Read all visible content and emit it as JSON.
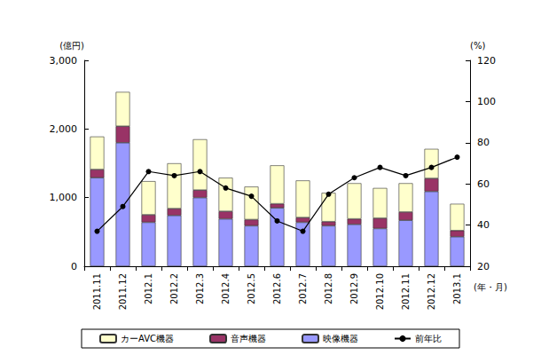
{
  "chart_data": {
    "type": "bar",
    "stacked": true,
    "grid": false,
    "legend": "bottom",
    "y_label": "(億円)",
    "y2_label": "(%)",
    "x_label": "(年・月)",
    "categories": [
      "2011.11",
      "2011.12",
      "2012.1",
      "2012.2",
      "2012.3",
      "2012.4",
      "2012.5",
      "2012.6",
      "2012.7",
      "2012.8",
      "2012.9",
      "2012.10",
      "2012.11",
      "2012.12",
      "2013.1"
    ],
    "ylim": [
      0,
      3000
    ],
    "yticks": [
      0,
      {
        "value": 1000,
        "label": "1,000"
      },
      {
        "value": 2000,
        "label": "2,000"
      },
      {
        "value": 3000,
        "label": "3,000"
      }
    ],
    "y2lim": [
      20,
      120
    ],
    "y2ticks": [
      20,
      40,
      60,
      80,
      100,
      120
    ],
    "series": [
      {
        "name": "映像機器",
        "type": "bar",
        "color": "#9999ff",
        "values": [
          1290,
          1800,
          640,
          740,
          1000,
          690,
          590,
          850,
          640,
          590,
          610,
          550,
          670,
          1090,
          430
        ]
      },
      {
        "name": "音声機器",
        "type": "bar",
        "color": "#993366",
        "values": [
          120,
          240,
          110,
          100,
          110,
          110,
          90,
          60,
          70,
          60,
          80,
          150,
          120,
          190,
          90
        ]
      },
      {
        "name": "カーAVC機器",
        "type": "bar",
        "color": "#ffffcc",
        "values": [
          480,
          500,
          490,
          660,
          740,
          490,
          480,
          560,
          540,
          420,
          520,
          440,
          420,
          430,
          390
        ]
      },
      {
        "name": "前年比",
        "type": "line",
        "axis": "y2",
        "color": "#000000",
        "marker": "circle",
        "values": [
          37,
          49,
          66,
          64,
          66,
          58,
          54,
          42,
          37,
          55,
          63,
          68,
          64,
          68,
          73
        ]
      }
    ]
  }
}
